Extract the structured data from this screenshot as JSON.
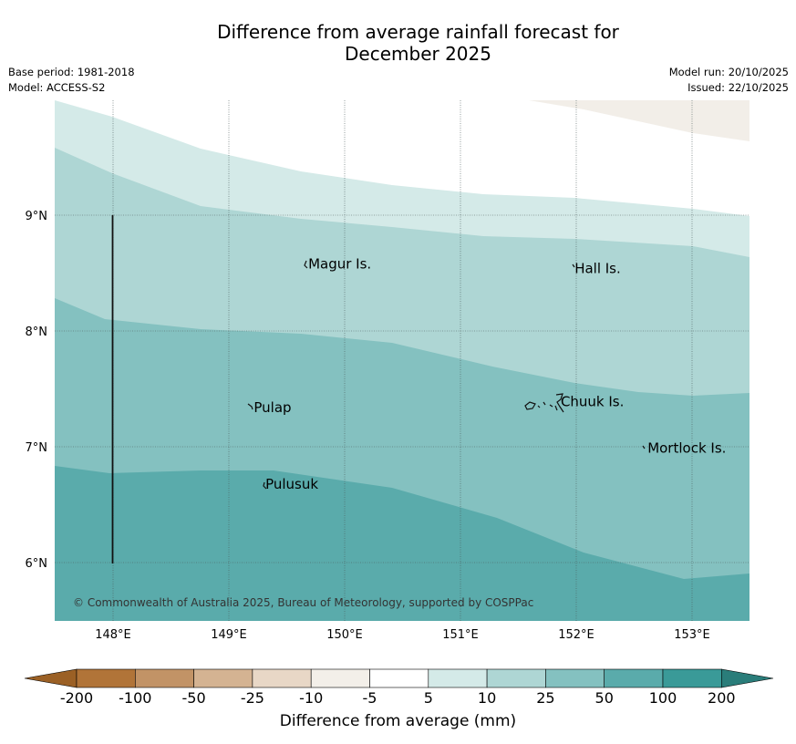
{
  "title_line1": "Difference from average rainfall forecast for",
  "title_line2": "December 2025",
  "meta": {
    "base_period": "Base period: 1981-2018",
    "model": "Model: ACCESS-S2",
    "model_run": "Model run: 20/10/2025",
    "issued": "Issued: 22/10/2025"
  },
  "map": {
    "lon_range": [
      147.5,
      153.5
    ],
    "lat_range": [
      5.5,
      10.0
    ],
    "lon_ticks": [
      {
        "value": 148,
        "label": "148°E"
      },
      {
        "value": 149,
        "label": "149°E"
      },
      {
        "value": 150,
        "label": "150°E"
      },
      {
        "value": 151,
        "label": "151°E"
      },
      {
        "value": 152,
        "label": "152°E"
      },
      {
        "value": 153,
        "label": "153°E"
      }
    ],
    "lat_ticks": [
      {
        "value": 9,
        "label": "9°N"
      },
      {
        "value": 8,
        "label": "8°N"
      },
      {
        "value": 7,
        "label": "7°N"
      },
      {
        "value": 6,
        "label": "6°N"
      }
    ],
    "places": [
      {
        "name": "Magur Is.",
        "lon": 149.67,
        "lat": 8.57
      },
      {
        "name": "Hall Is.",
        "lon": 151.97,
        "lat": 8.53
      },
      {
        "name": "Pulap",
        "lon": 149.2,
        "lat": 7.33
      },
      {
        "name": "Chuuk Is.",
        "lon": 151.85,
        "lat": 7.38
      },
      {
        "name": "Mortlock Is.",
        "lon": 152.6,
        "lat": 6.98
      },
      {
        "name": "Pulusuk",
        "lon": 149.3,
        "lat": 6.67
      }
    ],
    "copyright": "© Commonwealth of Australia 2025, Bureau of Meteorology, supported by COSPPac",
    "colors": {
      "class_neg10_neg5": "#f2eee8",
      "class_5_10": "#d4eae8",
      "class_10_25": "#aed6d4",
      "class_25_50": "#84c1c0",
      "class_50_100": "#5aabab",
      "border": "#111111"
    }
  },
  "colorbar": {
    "title": "Difference from average (mm)",
    "boundaries": [
      "-200",
      "-100",
      "-50",
      "-25",
      "-10",
      "-5",
      "5",
      "10",
      "25",
      "50",
      "100",
      "200"
    ],
    "colors": [
      "#9b6025",
      "#b17438",
      "#c29366",
      "#d4b392",
      "#e8d7c6",
      "#f3efe9",
      "#ffffff",
      "#d4eae8",
      "#aed6d4",
      "#84c1c0",
      "#5aabab",
      "#3a9a98",
      "#2a7d7a"
    ]
  }
}
